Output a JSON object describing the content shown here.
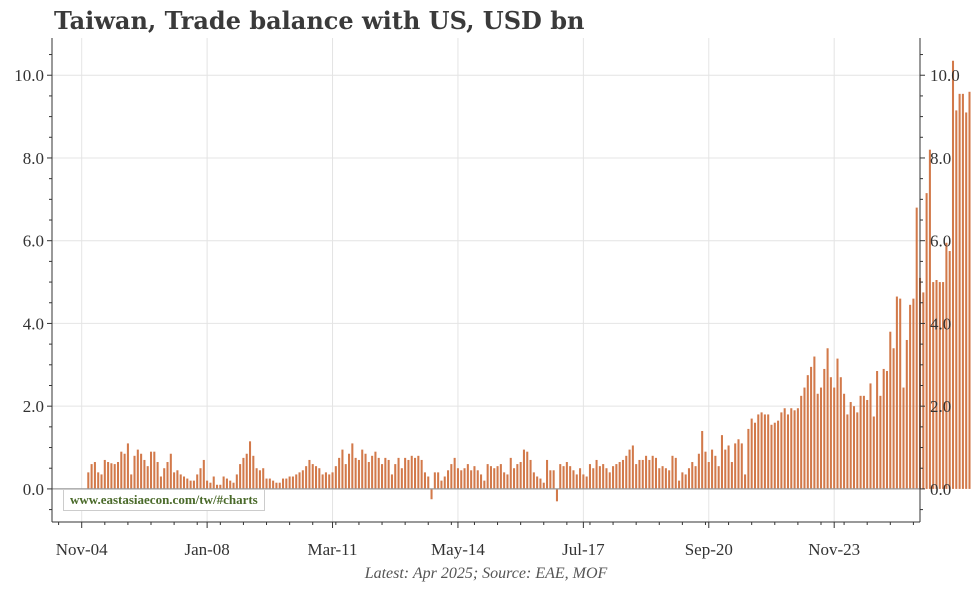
{
  "title": "Taiwan, Trade balance with US, USD bn",
  "source": "Latest: Apr 2025; Source: EAE, MOF",
  "watermark": "www.eastasiaecon.com/tw/#charts",
  "colors": {
    "bar": "#d2794a",
    "grid": "#e4e4e4",
    "zero": "#999999",
    "axis": "#333333"
  },
  "chart_data": {
    "type": "bar",
    "x_start": "Jan-05",
    "x_end": "Apr-25",
    "frequency": "monthly",
    "xlim": [
      "Feb-04",
      "Jan-26"
    ],
    "ylim": [
      -0.8,
      10.9
    ],
    "yticks": [
      0.0,
      2.0,
      4.0,
      6.0,
      8.0,
      10.0
    ],
    "ytick_labels": [
      "0.0",
      "2.0",
      "4.0",
      "6.0",
      "8.0",
      "10.0"
    ],
    "xticks": [
      "Nov-04",
      "Jan-08",
      "Mar-11",
      "May-14",
      "Jul-17",
      "Sep-20",
      "Nov-23"
    ],
    "grid": true,
    "values": [
      0.4,
      0.6,
      0.65,
      0.4,
      0.35,
      0.7,
      0.65,
      0.62,
      0.6,
      0.65,
      0.9,
      0.85,
      1.1,
      0.35,
      0.8,
      0.95,
      0.85,
      0.7,
      0.55,
      0.9,
      0.9,
      0.65,
      0.3,
      0.5,
      0.65,
      0.85,
      0.4,
      0.45,
      0.35,
      0.3,
      0.25,
      0.2,
      0.2,
      0.35,
      0.5,
      0.7,
      0.2,
      0.15,
      0.3,
      0.1,
      0.1,
      0.3,
      0.25,
      0.2,
      0.15,
      0.35,
      0.6,
      0.75,
      0.85,
      1.15,
      0.8,
      0.5,
      0.45,
      0.5,
      0.25,
      0.25,
      0.2,
      0.15,
      0.15,
      0.25,
      0.25,
      0.3,
      0.3,
      0.35,
      0.4,
      0.45,
      0.55,
      0.7,
      0.6,
      0.55,
      0.5,
      0.35,
      0.4,
      0.35,
      0.4,
      0.55,
      0.75,
      0.95,
      0.6,
      0.85,
      1.1,
      0.75,
      0.7,
      0.95,
      0.85,
      0.65,
      0.8,
      0.9,
      0.75,
      0.6,
      0.75,
      0.7,
      0.35,
      0.6,
      0.75,
      0.5,
      0.75,
      0.7,
      0.8,
      0.75,
      0.8,
      0.7,
      0.4,
      0.3,
      -0.25,
      0.4,
      0.4,
      0.2,
      0.3,
      0.45,
      0.6,
      0.75,
      0.5,
      0.45,
      0.5,
      0.6,
      0.45,
      0.55,
      0.45,
      0.35,
      0.2,
      0.6,
      0.55,
      0.5,
      0.55,
      0.6,
      0.4,
      0.35,
      0.75,
      0.5,
      0.6,
      0.65,
      0.95,
      0.9,
      0.7,
      0.4,
      0.3,
      0.25,
      0.15,
      0.7,
      0.45,
      0.45,
      -0.3,
      0.6,
      0.55,
      0.65,
      0.55,
      0.45,
      0.35,
      0.5,
      0.35,
      0.3,
      0.6,
      0.5,
      0.7,
      0.55,
      0.6,
      0.5,
      0.4,
      0.55,
      0.6,
      0.65,
      0.7,
      0.8,
      0.95,
      1.05,
      0.6,
      0.7,
      0.7,
      0.8,
      0.7,
      0.8,
      0.75,
      0.5,
      0.55,
      0.5,
      0.45,
      0.8,
      0.75,
      0.2,
      0.4,
      0.35,
      0.5,
      0.65,
      0.55,
      0.85,
      1.4,
      0.9,
      0.65,
      0.95,
      0.8,
      0.55,
      1.3,
      0.95,
      1.05,
      0.65,
      1.1,
      1.2,
      1.1,
      0.35,
      1.45,
      1.7,
      1.6,
      1.8,
      1.85,
      1.8,
      1.8,
      1.55,
      1.6,
      1.65,
      1.85,
      1.95,
      1.8,
      1.95,
      1.9,
      1.95,
      2.25,
      2.45,
      2.75,
      2.95,
      3.2,
      2.3,
      2.45,
      2.9,
      3.4,
      2.7,
      2.45,
      3.15,
      2.7,
      2.3,
      1.8,
      2.1,
      2.0,
      1.85,
      2.25,
      2.25,
      2.15,
      2.55,
      1.75,
      2.85,
      2.25,
      2.9,
      2.85,
      3.8,
      3.4,
      4.65,
      4.6,
      2.45,
      3.6,
      4.45,
      4.6,
      6.8,
      5.1,
      4.75,
      7.15,
      8.2,
      5.0,
      5.05,
      5.0,
      5.0,
      5.95,
      5.75,
      10.35,
      9.15,
      9.55,
      9.55,
      9.1,
      9.6
    ]
  }
}
